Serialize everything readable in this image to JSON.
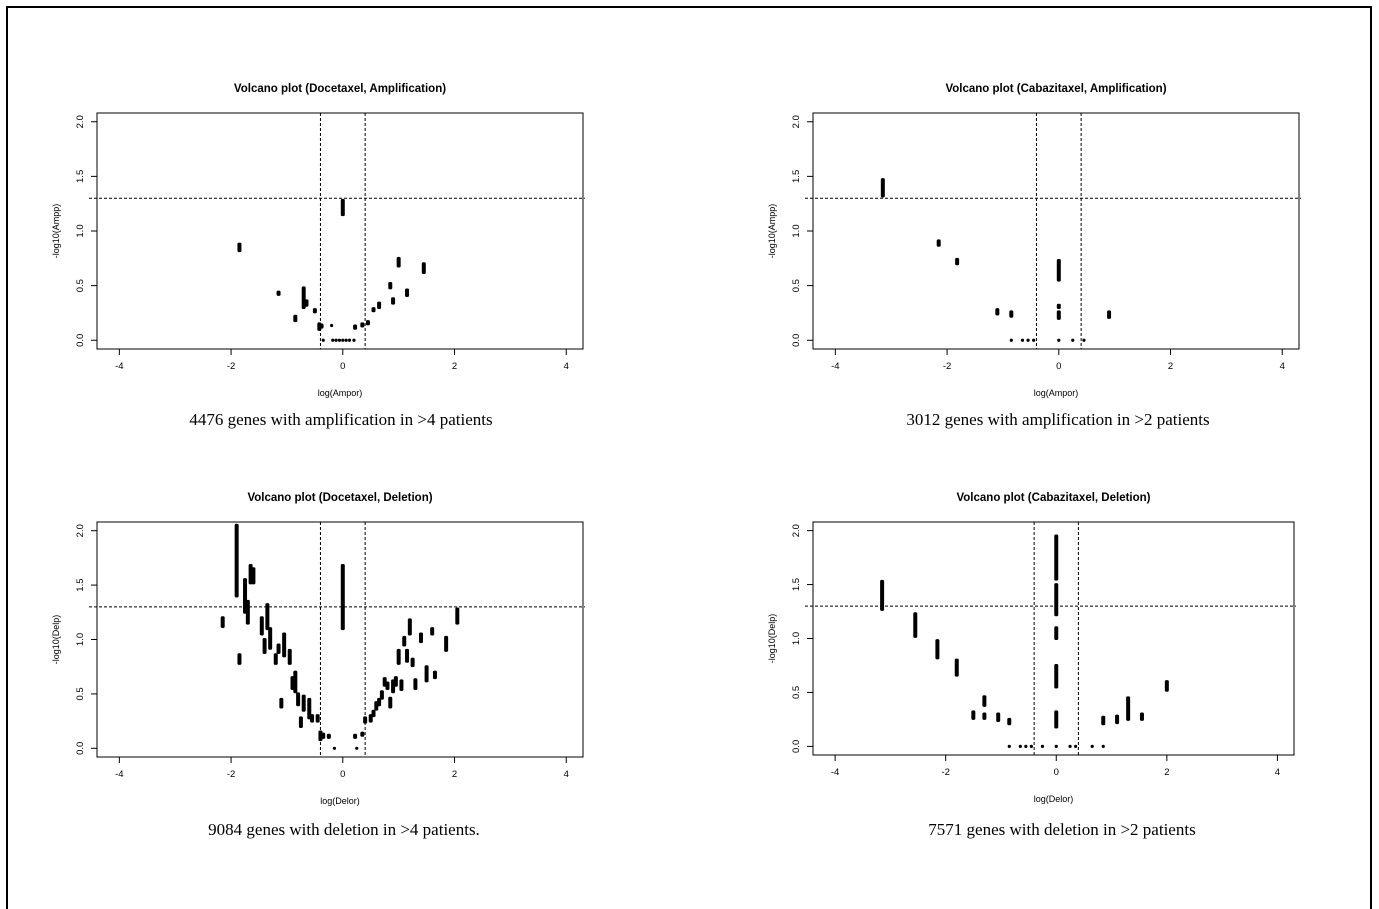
{
  "captions": [
    "4476 genes with amplification in >4 patients",
    "3012 genes with amplification in >2 patients",
    "9084 genes with deletion in >4 patients.",
    "7571 genes with deletion in >2 patients"
  ],
  "chart_data": [
    {
      "type": "scatter",
      "title": "Volcano plot (Docetaxel, Amplification)",
      "xlabel": "log(Ampor)",
      "ylabel": "-log10(Ampp)",
      "xlim": [
        -4.4,
        4.3
      ],
      "ylim": [
        -0.08,
        2.08
      ],
      "xticks": [
        -4,
        -2,
        0,
        2,
        4
      ],
      "yticks": [
        0.0,
        0.5,
        1.0,
        1.5,
        2.0
      ],
      "ytick_labels": [
        "0.0",
        "0.5",
        "1.0",
        "1.5",
        "2.0"
      ],
      "ref_lines": {
        "h": 1.3,
        "v": [
          -0.4,
          0.4
        ]
      },
      "points": [
        [
          -1.85,
          0.82,
          0.88
        ],
        [
          -1.15,
          0.42,
          0.44
        ],
        [
          -0.85,
          0.18,
          0.22
        ],
        [
          -0.7,
          0.3,
          0.48
        ],
        [
          -0.65,
          0.32,
          0.36
        ],
        [
          -0.5,
          0.26,
          0.28
        ],
        [
          -0.42,
          0.1,
          0.15
        ],
        [
          -0.38,
          0.12,
          0.14
        ],
        [
          -0.2,
          0.13,
          0.14
        ],
        [
          -0.35,
          0.0,
          0.0
        ],
        [
          -0.18,
          0.0,
          0.0
        ],
        [
          -0.12,
          0.0,
          0.0
        ],
        [
          -0.06,
          0.0,
          0.0
        ],
        [
          0.0,
          0.0,
          0.0
        ],
        [
          0.06,
          0.0,
          0.0
        ],
        [
          0.12,
          0.0,
          0.0
        ],
        [
          0.2,
          0.0,
          0.0
        ],
        [
          0.0,
          1.15,
          1.28
        ],
        [
          0.22,
          0.11,
          0.13
        ],
        [
          0.35,
          0.13,
          0.15
        ],
        [
          0.45,
          0.15,
          0.17
        ],
        [
          0.55,
          0.27,
          0.29
        ],
        [
          0.65,
          0.3,
          0.34
        ],
        [
          0.9,
          0.34,
          0.38
        ],
        [
          0.85,
          0.48,
          0.52
        ],
        [
          1.0,
          0.68,
          0.75
        ],
        [
          1.15,
          0.41,
          0.46
        ],
        [
          1.45,
          0.62,
          0.7
        ]
      ]
    },
    {
      "type": "scatter",
      "title": "Volcano plot (Cabazitaxel, Amplification)",
      "xlabel": "log(Ampor)",
      "ylabel": "-log10(Ampp)",
      "xlim": [
        -4.4,
        4.3
      ],
      "ylim": [
        -0.08,
        2.08
      ],
      "xticks": [
        -4,
        -2,
        0,
        2,
        4
      ],
      "yticks": [
        0.0,
        0.5,
        1.0,
        1.5,
        2.0
      ],
      "ytick_labels": [
        "0.0",
        "0.5",
        "1.0",
        "1.5",
        "2.0"
      ],
      "ref_lines": {
        "h": 1.3,
        "v": [
          -0.4,
          0.4
        ]
      },
      "points": [
        [
          -3.15,
          1.32,
          1.47
        ],
        [
          -2.15,
          0.87,
          0.91
        ],
        [
          -1.82,
          0.7,
          0.74
        ],
        [
          -1.1,
          0.24,
          0.28
        ],
        [
          -0.85,
          0.22,
          0.26
        ],
        [
          -0.85,
          0.0,
          0.0
        ],
        [
          -0.65,
          0.0,
          0.0
        ],
        [
          -0.55,
          0.0,
          0.0
        ],
        [
          -0.45,
          0.0,
          0.0
        ],
        [
          0.0,
          0.55,
          0.73
        ],
        [
          0.0,
          0.3,
          0.32
        ],
        [
          0.0,
          0.2,
          0.26
        ],
        [
          0.0,
          0.0,
          0.0
        ],
        [
          0.25,
          0.0,
          0.0
        ],
        [
          0.45,
          0.0,
          0.0
        ],
        [
          0.9,
          0.21,
          0.26
        ]
      ]
    },
    {
      "type": "scatter",
      "title": "Volcano plot (Docetaxel, Deletion)",
      "xlabel": "log(Delor)",
      "ylabel": "-log10(Delp)",
      "xlim": [
        -4.4,
        4.3
      ],
      "ylim": [
        -0.08,
        2.08
      ],
      "xticks": [
        -4,
        -2,
        0,
        2,
        4
      ],
      "yticks": [
        0.0,
        0.5,
        1.0,
        1.5,
        2.0
      ],
      "ytick_labels": [
        "0.0",
        "0.5",
        "1.0",
        "1.5",
        "2.0"
      ],
      "ref_lines": {
        "h": 1.3,
        "v": [
          -0.4,
          0.4
        ]
      },
      "points": [
        [
          -2.15,
          1.12,
          1.2
        ],
        [
          -1.9,
          1.4,
          2.05
        ],
        [
          -1.85,
          0.78,
          0.86
        ],
        [
          -1.75,
          1.25,
          1.55
        ],
        [
          -1.7,
          1.15,
          1.35
        ],
        [
          -1.65,
          1.52,
          1.68
        ],
        [
          -1.6,
          1.52,
          1.65
        ],
        [
          -1.45,
          1.05,
          1.2
        ],
        [
          -1.4,
          0.88,
          1.0
        ],
        [
          -1.35,
          1.1,
          1.32
        ],
        [
          -1.3,
          0.92,
          1.1
        ],
        [
          -1.2,
          0.78,
          0.86
        ],
        [
          -1.15,
          0.88,
          0.95
        ],
        [
          -1.1,
          0.38,
          0.45
        ],
        [
          -1.05,
          0.85,
          1.05
        ],
        [
          -0.95,
          0.78,
          0.9
        ],
        [
          -0.9,
          0.55,
          0.65
        ],
        [
          -0.85,
          0.52,
          0.7
        ],
        [
          -0.8,
          0.4,
          0.5
        ],
        [
          -0.75,
          0.2,
          0.28
        ],
        [
          -0.7,
          0.35,
          0.48
        ],
        [
          -0.6,
          0.28,
          0.45
        ],
        [
          -0.55,
          0.25,
          0.3
        ],
        [
          -0.45,
          0.25,
          0.3
        ],
        [
          -0.4,
          0.08,
          0.15
        ],
        [
          -0.35,
          0.1,
          0.13
        ],
        [
          -0.25,
          0.1,
          0.12
        ],
        [
          -0.15,
          0.0,
          0.0
        ],
        [
          0.0,
          1.1,
          1.68
        ],
        [
          0.25,
          0.0,
          0.0
        ],
        [
          0.22,
          0.1,
          0.12
        ],
        [
          0.35,
          0.12,
          0.14
        ],
        [
          0.4,
          0.24,
          0.28
        ],
        [
          0.5,
          0.25,
          0.3
        ],
        [
          0.55,
          0.3,
          0.34
        ],
        [
          0.6,
          0.36,
          0.42
        ],
        [
          0.65,
          0.4,
          0.45
        ],
        [
          0.7,
          0.46,
          0.52
        ],
        [
          0.75,
          0.58,
          0.64
        ],
        [
          0.8,
          0.55,
          0.6
        ],
        [
          0.85,
          0.38,
          0.46
        ],
        [
          0.9,
          0.52,
          0.62
        ],
        [
          0.95,
          0.58,
          0.65
        ],
        [
          1.0,
          0.78,
          0.9
        ],
        [
          1.05,
          0.54,
          0.62
        ],
        [
          1.1,
          0.95,
          1.02
        ],
        [
          1.15,
          0.8,
          0.9
        ],
        [
          1.2,
          1.05,
          1.18
        ],
        [
          1.25,
          0.76,
          0.82
        ],
        [
          1.3,
          0.55,
          0.63
        ],
        [
          1.4,
          0.98,
          1.05
        ],
        [
          1.5,
          0.62,
          0.75
        ],
        [
          1.6,
          1.05,
          1.1
        ],
        [
          1.65,
          0.65,
          0.7
        ],
        [
          1.85,
          0.9,
          1.02
        ],
        [
          2.05,
          1.15,
          1.28
        ]
      ]
    },
    {
      "type": "scatter",
      "title": "Volcano plot (Cabazitaxel, Deletion)",
      "xlabel": "log(Delor)",
      "ylabel": "-log10(Delp)",
      "xlim": [
        -4.4,
        4.3
      ],
      "ylim": [
        -0.08,
        2.08
      ],
      "xticks": [
        -4,
        -2,
        0,
        2,
        4
      ],
      "yticks": [
        0.0,
        0.5,
        1.0,
        1.5,
        2.0
      ],
      "ytick_labels": [
        "0.0",
        "0.5",
        "1.0",
        "1.5",
        "2.0"
      ],
      "ref_lines": {
        "h": 1.3,
        "v": [
          -0.4,
          0.4
        ]
      },
      "points": [
        [
          -3.15,
          1.27,
          1.53
        ],
        [
          -2.55,
          1.02,
          1.23
        ],
        [
          -2.15,
          0.82,
          0.98
        ],
        [
          -1.8,
          0.66,
          0.8
        ],
        [
          -1.5,
          0.26,
          0.32
        ],
        [
          -1.3,
          0.38,
          0.46
        ],
        [
          -1.3,
          0.26,
          0.3
        ],
        [
          -1.05,
          0.24,
          0.3
        ],
        [
          -0.85,
          0.21,
          0.25
        ],
        [
          -0.85,
          0.0,
          0.0
        ],
        [
          -0.65,
          0.0,
          0.0
        ],
        [
          -0.55,
          0.0,
          0.0
        ],
        [
          -0.45,
          0.0,
          0.0
        ],
        [
          -0.25,
          0.0,
          0.0
        ],
        [
          0.0,
          0.18,
          0.32
        ],
        [
          0.0,
          0.55,
          0.75
        ],
        [
          0.0,
          1.0,
          1.1
        ],
        [
          0.0,
          1.22,
          1.5
        ],
        [
          0.0,
          1.55,
          1.95
        ],
        [
          0.0,
          0.0,
          0.0
        ],
        [
          0.25,
          0.0,
          0.0
        ],
        [
          0.35,
          0.0,
          0.0
        ],
        [
          0.65,
          0.0,
          0.0
        ],
        [
          0.85,
          0.0,
          0.0
        ],
        [
          0.85,
          0.21,
          0.27
        ],
        [
          1.1,
          0.22,
          0.28
        ],
        [
          1.3,
          0.25,
          0.45
        ],
        [
          1.55,
          0.25,
          0.3
        ],
        [
          2.0,
          0.52,
          0.6
        ]
      ]
    }
  ]
}
